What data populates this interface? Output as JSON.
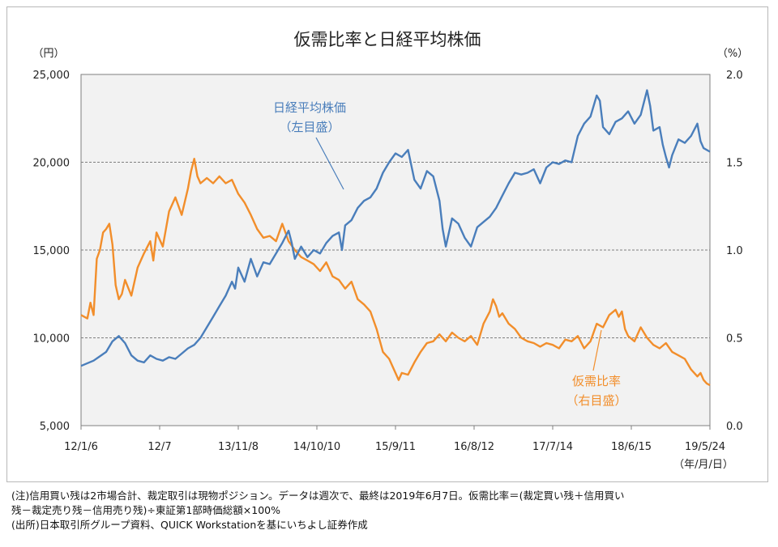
{
  "chart_data": {
    "type": "line",
    "title": "仮需比率と日経平均株価",
    "left_axis_unit": "（円）",
    "right_axis_unit": "（%）",
    "x_axis_unit": "（年/月/日）",
    "ylim_left": [
      5000,
      25000
    ],
    "ylim_right": [
      0.0,
      2.0
    ],
    "left_ticks": [
      "25,000",
      "20,000",
      "15,000",
      "10,000",
      "5,000"
    ],
    "right_ticks": [
      "2.0",
      "1.5",
      "1.0",
      "0.5",
      "0.0"
    ],
    "x_tick_labels": [
      "12/1/6",
      "12/7",
      "13/11/8",
      "14/10/10",
      "15/9/11",
      "16/8/12",
      "17/7/14",
      "18/6/15",
      "19/5/24"
    ],
    "grid": "horizontal dashed",
    "series": [
      {
        "name": "日経平均株価",
        "name_line1": "日経平均株価",
        "name_line2": "（左目盛）",
        "axis": "left",
        "color": "#4a7ebb",
        "points": [
          [
            0,
            8400
          ],
          [
            0.2,
            8700
          ],
          [
            0.4,
            9200
          ],
          [
            0.5,
            9800
          ],
          [
            0.6,
            10100
          ],
          [
            0.7,
            9700
          ],
          [
            0.8,
            9000
          ],
          [
            0.9,
            8700
          ],
          [
            1.0,
            8600
          ],
          [
            1.1,
            9000
          ],
          [
            1.2,
            8800
          ],
          [
            1.3,
            8700
          ],
          [
            1.4,
            8900
          ],
          [
            1.5,
            8800
          ],
          [
            1.6,
            9100
          ],
          [
            1.7,
            9400
          ],
          [
            1.8,
            9600
          ],
          [
            1.9,
            10000
          ],
          [
            2.0,
            10600
          ],
          [
            2.1,
            11200
          ],
          [
            2.2,
            11800
          ],
          [
            2.3,
            12400
          ],
          [
            2.4,
            13200
          ],
          [
            2.45,
            12800
          ],
          [
            2.5,
            14000
          ],
          [
            2.6,
            13200
          ],
          [
            2.7,
            14500
          ],
          [
            2.8,
            13500
          ],
          [
            2.9,
            14300
          ],
          [
            3.0,
            14200
          ],
          [
            3.1,
            14800
          ],
          [
            3.2,
            15400
          ],
          [
            3.3,
            16100
          ],
          [
            3.35,
            15400
          ],
          [
            3.4,
            14500
          ],
          [
            3.5,
            15200
          ],
          [
            3.6,
            14600
          ],
          [
            3.7,
            15000
          ],
          [
            3.8,
            14800
          ],
          [
            3.9,
            15400
          ],
          [
            4.0,
            15800
          ],
          [
            4.1,
            16000
          ],
          [
            4.15,
            15000
          ],
          [
            4.2,
            16400
          ],
          [
            4.3,
            16700
          ],
          [
            4.4,
            17400
          ],
          [
            4.5,
            17800
          ],
          [
            4.6,
            18000
          ],
          [
            4.7,
            18500
          ],
          [
            4.8,
            19400
          ],
          [
            4.9,
            20000
          ],
          [
            5.0,
            20500
          ],
          [
            5.1,
            20300
          ],
          [
            5.2,
            20700
          ],
          [
            5.3,
            19000
          ],
          [
            5.4,
            18500
          ],
          [
            5.5,
            19500
          ],
          [
            5.6,
            19200
          ],
          [
            5.7,
            17800
          ],
          [
            5.75,
            16200
          ],
          [
            5.8,
            15200
          ],
          [
            5.9,
            16800
          ],
          [
            6.0,
            16500
          ],
          [
            6.1,
            15700
          ],
          [
            6.2,
            15200
          ],
          [
            6.3,
            16300
          ],
          [
            6.4,
            16600
          ],
          [
            6.5,
            16900
          ],
          [
            6.6,
            17400
          ],
          [
            6.7,
            18100
          ],
          [
            6.8,
            18800
          ],
          [
            6.9,
            19400
          ],
          [
            7.0,
            19300
          ],
          [
            7.1,
            19400
          ],
          [
            7.2,
            19600
          ],
          [
            7.3,
            18800
          ],
          [
            7.4,
            19700
          ],
          [
            7.5,
            20000
          ],
          [
            7.6,
            19900
          ],
          [
            7.7,
            20100
          ],
          [
            7.8,
            20000
          ],
          [
            7.9,
            21500
          ],
          [
            8.0,
            22200
          ],
          [
            8.1,
            22600
          ],
          [
            8.2,
            23800
          ],
          [
            8.25,
            23500
          ],
          [
            8.3,
            22000
          ],
          [
            8.4,
            21600
          ],
          [
            8.5,
            22300
          ],
          [
            8.6,
            22500
          ],
          [
            8.7,
            22900
          ],
          [
            8.8,
            22200
          ],
          [
            8.9,
            22700
          ],
          [
            9.0,
            24100
          ],
          [
            9.05,
            23200
          ],
          [
            9.1,
            21800
          ],
          [
            9.2,
            22000
          ],
          [
            9.25,
            21000
          ],
          [
            9.3,
            20300
          ],
          [
            9.35,
            19700
          ],
          [
            9.4,
            20400
          ],
          [
            9.5,
            21300
          ],
          [
            9.6,
            21100
          ],
          [
            9.7,
            21500
          ],
          [
            9.8,
            22200
          ],
          [
            9.85,
            21200
          ],
          [
            9.9,
            20800
          ],
          [
            10.0,
            20600
          ]
        ]
      },
      {
        "name": "仮需比率",
        "name_line1": "仮需比率",
        "name_line2": "（右目盛）",
        "axis": "right",
        "color": "#f28e2b",
        "points": [
          [
            0,
            0.63
          ],
          [
            0.1,
            0.61
          ],
          [
            0.15,
            0.7
          ],
          [
            0.2,
            0.63
          ],
          [
            0.25,
            0.95
          ],
          [
            0.3,
            1.0
          ],
          [
            0.35,
            1.1
          ],
          [
            0.4,
            1.12
          ],
          [
            0.45,
            1.15
          ],
          [
            0.5,
            1.03
          ],
          [
            0.55,
            0.8
          ],
          [
            0.6,
            0.72
          ],
          [
            0.65,
            0.75
          ],
          [
            0.7,
            0.83
          ],
          [
            0.8,
            0.74
          ],
          [
            0.9,
            0.9
          ],
          [
            1.0,
            0.98
          ],
          [
            1.1,
            1.05
          ],
          [
            1.15,
            0.94
          ],
          [
            1.2,
            1.1
          ],
          [
            1.3,
            1.02
          ],
          [
            1.4,
            1.22
          ],
          [
            1.5,
            1.3
          ],
          [
            1.6,
            1.2
          ],
          [
            1.7,
            1.35
          ],
          [
            1.75,
            1.45
          ],
          [
            1.8,
            1.52
          ],
          [
            1.85,
            1.42
          ],
          [
            1.9,
            1.38
          ],
          [
            2.0,
            1.41
          ],
          [
            2.1,
            1.38
          ],
          [
            2.2,
            1.42
          ],
          [
            2.3,
            1.38
          ],
          [
            2.4,
            1.4
          ],
          [
            2.5,
            1.32
          ],
          [
            2.6,
            1.27
          ],
          [
            2.7,
            1.2
          ],
          [
            2.8,
            1.12
          ],
          [
            2.9,
            1.07
          ],
          [
            3.0,
            1.08
          ],
          [
            3.1,
            1.05
          ],
          [
            3.2,
            1.15
          ],
          [
            3.3,
            1.05
          ],
          [
            3.4,
            1.0
          ],
          [
            3.5,
            0.96
          ],
          [
            3.6,
            0.94
          ],
          [
            3.7,
            0.92
          ],
          [
            3.8,
            0.88
          ],
          [
            3.9,
            0.93
          ],
          [
            4.0,
            0.85
          ],
          [
            4.1,
            0.83
          ],
          [
            4.2,
            0.78
          ],
          [
            4.3,
            0.82
          ],
          [
            4.4,
            0.72
          ],
          [
            4.5,
            0.69
          ],
          [
            4.6,
            0.65
          ],
          [
            4.7,
            0.55
          ],
          [
            4.8,
            0.42
          ],
          [
            4.9,
            0.38
          ],
          [
            5.0,
            0.3
          ],
          [
            5.05,
            0.26
          ],
          [
            5.1,
            0.3
          ],
          [
            5.2,
            0.29
          ],
          [
            5.3,
            0.36
          ],
          [
            5.4,
            0.42
          ],
          [
            5.5,
            0.47
          ],
          [
            5.6,
            0.48
          ],
          [
            5.7,
            0.52
          ],
          [
            5.8,
            0.48
          ],
          [
            5.9,
            0.53
          ],
          [
            6.0,
            0.5
          ],
          [
            6.1,
            0.48
          ],
          [
            6.2,
            0.51
          ],
          [
            6.3,
            0.46
          ],
          [
            6.4,
            0.58
          ],
          [
            6.5,
            0.65
          ],
          [
            6.55,
            0.72
          ],
          [
            6.6,
            0.68
          ],
          [
            6.65,
            0.62
          ],
          [
            6.7,
            0.64
          ],
          [
            6.8,
            0.58
          ],
          [
            6.9,
            0.55
          ],
          [
            7.0,
            0.5
          ],
          [
            7.1,
            0.48
          ],
          [
            7.2,
            0.47
          ],
          [
            7.3,
            0.45
          ],
          [
            7.4,
            0.47
          ],
          [
            7.5,
            0.46
          ],
          [
            7.6,
            0.44
          ],
          [
            7.7,
            0.49
          ],
          [
            7.8,
            0.48
          ],
          [
            7.9,
            0.51
          ],
          [
            8.0,
            0.44
          ],
          [
            8.1,
            0.48
          ],
          [
            8.2,
            0.58
          ],
          [
            8.3,
            0.56
          ],
          [
            8.4,
            0.63
          ],
          [
            8.5,
            0.66
          ],
          [
            8.55,
            0.62
          ],
          [
            8.6,
            0.65
          ],
          [
            8.65,
            0.55
          ],
          [
            8.7,
            0.51
          ],
          [
            8.8,
            0.48
          ],
          [
            8.9,
            0.56
          ],
          [
            9.0,
            0.5
          ],
          [
            9.1,
            0.46
          ],
          [
            9.2,
            0.44
          ],
          [
            9.3,
            0.47
          ],
          [
            9.4,
            0.42
          ],
          [
            9.5,
            0.4
          ],
          [
            9.6,
            0.38
          ],
          [
            9.7,
            0.32
          ],
          [
            9.8,
            0.28
          ],
          [
            9.85,
            0.3
          ],
          [
            9.9,
            0.26
          ],
          [
            9.95,
            0.24
          ],
          [
            10.0,
            0.23
          ]
        ]
      }
    ]
  },
  "notes": {
    "line1": "(注)信用買い残は2市場合計、裁定取引は現物ポジション。データは週次で、最終は2019年6月7日。仮需比率＝(裁定買い残＋信用買い",
    "line2": "残－裁定売り残－信用売り残)÷東証第1部時価総額×100%",
    "line3": "(出所)日本取引所グループ資料、QUICK Workstationを基にいちよし証券作成"
  }
}
